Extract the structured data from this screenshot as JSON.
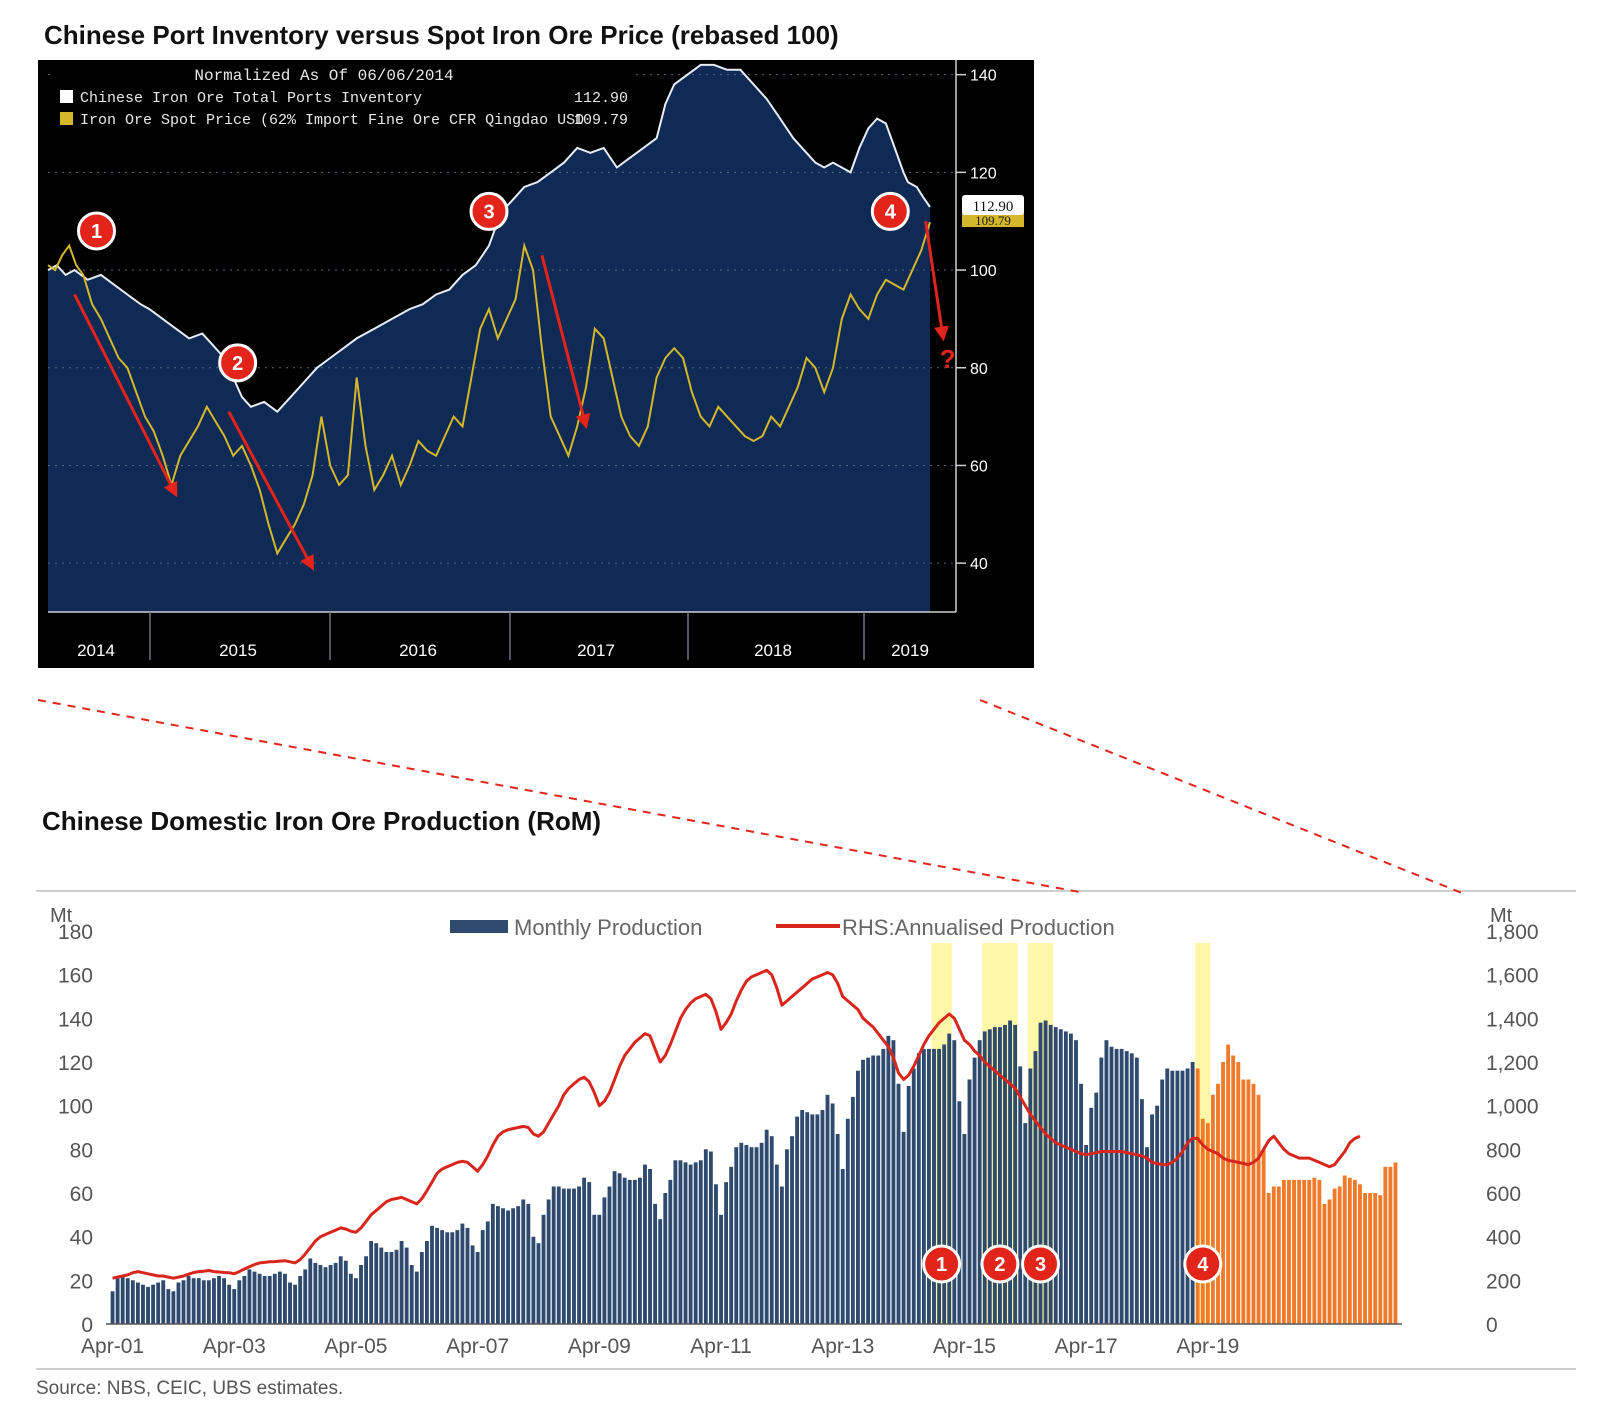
{
  "chart_data": [
    {
      "type": "area",
      "title": "Chinese Port Inventory versus Spot Iron Ore Price (rebased 100)",
      "legend": {
        "header": "Normalized As Of 06/06/2014",
        "placement": "top-left",
        "items": [
          {
            "label": "Chinese Iron Ore Total Ports Inventory",
            "value": "112.90",
            "color": "#ffffff"
          },
          {
            "label": "Iron Ore Spot Price (62% Import Fine Ore CFR Qingdao USD",
            "value": "109.79",
            "color": "#d4b72a"
          }
        ]
      },
      "x_tick_labels": [
        "2014",
        "2015",
        "2016",
        "2017",
        "2018",
        "2019"
      ],
      "y_tick_labels": [
        "140",
        "120",
        "100",
        "80",
        "60",
        "40"
      ],
      "ylim": [
        30,
        143
      ],
      "last_value_labels": [
        "112.90",
        "109.79"
      ],
      "series": [
        {
          "name": "Chinese Iron Ore Total Ports Inventory",
          "color": "#e8ecf5",
          "fill": "#0f2a55",
          "t": [
            0,
            0.01,
            0.02,
            0.03,
            0.045,
            0.06,
            0.075,
            0.09,
            0.105,
            0.115,
            0.13,
            0.145,
            0.16,
            0.175,
            0.185,
            0.2,
            0.21,
            0.22,
            0.23,
            0.245,
            0.26,
            0.275,
            0.29,
            0.305,
            0.32,
            0.335,
            0.35,
            0.37,
            0.39,
            0.41,
            0.425,
            0.44,
            0.455,
            0.47,
            0.485,
            0.5,
            0.51,
            0.52,
            0.53,
            0.54,
            0.555,
            0.57,
            0.585,
            0.6,
            0.615,
            0.63,
            0.645,
            0.66,
            0.675,
            0.69,
            0.7,
            0.71,
            0.725,
            0.74,
            0.755,
            0.77,
            0.785,
            0.8,
            0.815,
            0.83,
            0.845,
            0.86,
            0.87,
            0.88,
            0.89,
            0.9,
            0.91,
            0.92,
            0.93,
            0.94,
            0.95,
            0.96,
            0.97,
            0.975,
            0.985,
            0.992,
            1.0
          ],
          "values": [
            100,
            101,
            99,
            100,
            98,
            99,
            97,
            95,
            93,
            92,
            90,
            88,
            86,
            87,
            85,
            82,
            78,
            74,
            72,
            73,
            71,
            74,
            77,
            80,
            82,
            84,
            86,
            88,
            90,
            92,
            93,
            95,
            96,
            99,
            101,
            105,
            110,
            113,
            115,
            117,
            118,
            120,
            122,
            125,
            124,
            125,
            121,
            123,
            125,
            127,
            134,
            138,
            140,
            142,
            142,
            141,
            141,
            138,
            135,
            131,
            127,
            124,
            122,
            121,
            122,
            121,
            120,
            125,
            129,
            131,
            130,
            125,
            120,
            118,
            117,
            115,
            112.9
          ]
        },
        {
          "name": "Iron Ore Spot Price (62% Import Fine Ore CFR Qingdao USD",
          "color": "#d4b72a",
          "t": [
            0,
            0.008,
            0.016,
            0.024,
            0.032,
            0.04,
            0.05,
            0.06,
            0.07,
            0.08,
            0.09,
            0.1,
            0.11,
            0.12,
            0.13,
            0.14,
            0.15,
            0.16,
            0.17,
            0.18,
            0.19,
            0.2,
            0.21,
            0.22,
            0.23,
            0.24,
            0.25,
            0.26,
            0.27,
            0.28,
            0.29,
            0.3,
            0.31,
            0.32,
            0.33,
            0.34,
            0.35,
            0.36,
            0.37,
            0.38,
            0.39,
            0.4,
            0.41,
            0.42,
            0.43,
            0.44,
            0.45,
            0.46,
            0.47,
            0.48,
            0.49,
            0.5,
            0.51,
            0.52,
            0.53,
            0.54,
            0.55,
            0.56,
            0.57,
            0.58,
            0.59,
            0.6,
            0.61,
            0.62,
            0.63,
            0.64,
            0.65,
            0.66,
            0.67,
            0.68,
            0.69,
            0.7,
            0.71,
            0.72,
            0.73,
            0.74,
            0.75,
            0.76,
            0.77,
            0.78,
            0.79,
            0.8,
            0.81,
            0.82,
            0.83,
            0.84,
            0.85,
            0.86,
            0.87,
            0.88,
            0.89,
            0.9,
            0.91,
            0.92,
            0.93,
            0.94,
            0.95,
            0.96,
            0.97,
            0.98,
            0.99,
            1.0
          ],
          "values": [
            101,
            100,
            103,
            105,
            101,
            99,
            93,
            90,
            86,
            82,
            80,
            75,
            70,
            67,
            62,
            56,
            62,
            65,
            68,
            72,
            69,
            66,
            62,
            64,
            60,
            55,
            48,
            42,
            45,
            48,
            52,
            58,
            70,
            60,
            56,
            58,
            78,
            64,
            55,
            58,
            62,
            56,
            60,
            65,
            63,
            62,
            66,
            70,
            68,
            78,
            88,
            92,
            86,
            90,
            94,
            105,
            100,
            84,
            70,
            66,
            62,
            68,
            76,
            88,
            86,
            78,
            70,
            66,
            64,
            68,
            78,
            82,
            84,
            82,
            75,
            70,
            68,
            72,
            70,
            68,
            66,
            65,
            66,
            70,
            68,
            72,
            76,
            82,
            80,
            75,
            80,
            90,
            95,
            92,
            90,
            95,
            98,
            97,
            96,
            100,
            104,
            109.79
          ]
        }
      ],
      "annotations": [
        {
          "label": "1",
          "t": 0.055,
          "y": 108
        },
        {
          "label": "2",
          "t": 0.215,
          "y": 81
        },
        {
          "label": "3",
          "t": 0.5,
          "y": 112
        },
        {
          "label": "4",
          "t": 0.955,
          "y": 112
        },
        {
          "label": "?",
          "t": 1.02,
          "y": 82
        }
      ],
      "arrows": [
        {
          "from_t": 0.03,
          "from_y": 95,
          "to_t": 0.145,
          "to_y": 54
        },
        {
          "from_t": 0.205,
          "from_y": 71,
          "to_t": 0.3,
          "to_y": 39
        },
        {
          "from_t": 0.56,
          "from_y": 103,
          "to_t": 0.61,
          "to_y": 68
        },
        {
          "from_t": 0.995,
          "from_y": 110,
          "to_t": 1.015,
          "to_y": 86
        }
      ]
    },
    {
      "type": "bar",
      "title": "Chinese Domestic Iron Ore Production (RoM)",
      "ylabel_left": "Mt",
      "ylabel_right": "Mt",
      "ylim": [
        0,
        180
      ],
      "ylim_right": [
        0,
        1800
      ],
      "y_tick_labels": [
        "0",
        "20",
        "40",
        "60",
        "80",
        "100",
        "120",
        "140",
        "160",
        "180"
      ],
      "y_tick_labels_right": [
        "0",
        "200",
        "400",
        "600",
        "800",
        "1,000",
        "1,200",
        "1,400",
        "1,600",
        "1,800"
      ],
      "x_tick_labels": [
        "Apr-01",
        "Apr-03",
        "Apr-05",
        "Apr-07",
        "Apr-09",
        "Apr-11",
        "Apr-13",
        "Apr-15",
        "Apr-17",
        "Apr-19"
      ],
      "legend": [
        {
          "label": "Monthly Production",
          "color": "#2e4a6e",
          "placement": "top"
        },
        {
          "label": "RHS:Annualised Production",
          "color": "#d9261c",
          "placement": "top"
        }
      ],
      "x_start": "Apr-01",
      "bar_color": "#2e4a6e",
      "recent_bar_color": "#f07a2a",
      "series": [
        {
          "name": "Monthly Production",
          "monthly_values": [
            15,
            21,
            22,
            21,
            20,
            19,
            18,
            17,
            18,
            19,
            20,
            16,
            15,
            19,
            20,
            22,
            21,
            21,
            20,
            20,
            21,
            22,
            21,
            18,
            16,
            20,
            22,
            25,
            24,
            23,
            22,
            22,
            23,
            24,
            23,
            19,
            18,
            22,
            25,
            30,
            28,
            27,
            26,
            27,
            28,
            31,
            29,
            23,
            21,
            27,
            31,
            38,
            37,
            35,
            33,
            33,
            34,
            38,
            35,
            27,
            24,
            33,
            38,
            45,
            44,
            43,
            42,
            42,
            43,
            46,
            44,
            36,
            33,
            43,
            47,
            55,
            54,
            53,
            52,
            53,
            54,
            57,
            55,
            40,
            37,
            50,
            57,
            63,
            63,
            62,
            62,
            62,
            63,
            67,
            65,
            50,
            50,
            58,
            63,
            70,
            69,
            67,
            66,
            66,
            67,
            73,
            71,
            55,
            48,
            60,
            66,
            75,
            75,
            74,
            73,
            74,
            75,
            80,
            79,
            64,
            50,
            65,
            72,
            81,
            83,
            82,
            81,
            81,
            83,
            89,
            86,
            73,
            63,
            80,
            86,
            95,
            98,
            97,
            96,
            96,
            98,
            105,
            101,
            87,
            71,
            94,
            104,
            116,
            121,
            122,
            123,
            123,
            126,
            132,
            130,
            110,
            88,
            109,
            117,
            124,
            126,
            126,
            126,
            126,
            128,
            133,
            130,
            102,
            87,
            112,
            122,
            130,
            134,
            135,
            136,
            136,
            137,
            139,
            137,
            118,
            92,
            117,
            125,
            138,
            139,
            137,
            136,
            135,
            134,
            133,
            130,
            110,
            82,
            99,
            106,
            122,
            130,
            127,
            126,
            126,
            125,
            124,
            122,
            103,
            81,
            96,
            100,
            112,
            117,
            116,
            116,
            116,
            117,
            120,
            117,
            94,
            92,
            105,
            110,
            120,
            128,
            123,
            120,
            112,
            112,
            110,
            105,
            80,
            60,
            63,
            63,
            66,
            66,
            66,
            66,
            66,
            66,
            67,
            66,
            55,
            57,
            62,
            63,
            68,
            67,
            66,
            64,
            60,
            60,
            60,
            59,
            72,
            72,
            74
          ]
        },
        {
          "name": "RHS:Annualised Production",
          "color": "#d9261c",
          "monthly_values": [
            210,
            215,
            220,
            225,
            235,
            240,
            235,
            230,
            225,
            220,
            220,
            215,
            210,
            215,
            220,
            228,
            236,
            240,
            242,
            245,
            240,
            238,
            236,
            235,
            230,
            240,
            252,
            262,
            272,
            280,
            282,
            285,
            286,
            288,
            290,
            285,
            280,
            295,
            320,
            350,
            380,
            400,
            410,
            420,
            430,
            440,
            435,
            425,
            420,
            440,
            470,
            500,
            520,
            540,
            560,
            570,
            575,
            580,
            570,
            560,
            550,
            575,
            610,
            650,
            690,
            710,
            720,
            730,
            740,
            745,
            740,
            720,
            700,
            730,
            770,
            820,
            860,
            880,
            890,
            895,
            900,
            905,
            900,
            870,
            860,
            880,
            920,
            960,
            1000,
            1050,
            1080,
            1100,
            1120,
            1130,
            1110,
            1060,
            1000,
            1020,
            1060,
            1120,
            1180,
            1230,
            1260,
            1290,
            1310,
            1330,
            1320,
            1260,
            1200,
            1230,
            1280,
            1340,
            1400,
            1440,
            1470,
            1490,
            1500,
            1510,
            1490,
            1430,
            1350,
            1380,
            1420,
            1480,
            1530,
            1570,
            1590,
            1600,
            1610,
            1620,
            1600,
            1540,
            1460,
            1480,
            1500,
            1520,
            1540,
            1560,
            1580,
            1590,
            1600,
            1610,
            1600,
            1560,
            1500,
            1480,
            1460,
            1440,
            1400,
            1380,
            1360,
            1330,
            1300,
            1270,
            1220,
            1150,
            1120,
            1140,
            1180,
            1230,
            1280,
            1320,
            1350,
            1380,
            1400,
            1420,
            1400,
            1350,
            1300,
            1280,
            1250,
            1230,
            1200,
            1180,
            1160,
            1140,
            1120,
            1100,
            1080,
            1040,
            1000,
            960,
            930,
            900,
            870,
            850,
            830,
            820,
            810,
            800,
            790,
            780,
            775,
            780,
            785,
            790,
            790,
            790,
            790,
            790,
            785,
            780,
            775,
            770,
            760,
            740,
            735,
            730,
            730,
            740,
            760,
            790,
            830,
            850,
            850,
            820,
            800,
            790,
            780,
            760,
            750,
            745,
            740,
            735,
            730,
            740,
            760,
            800,
            840,
            860,
            830,
            800,
            780,
            770,
            760,
            760,
            760,
            750,
            740,
            730,
            720,
            730,
            760,
            790,
            830,
            850,
            860
          ]
        }
      ],
      "highlight_bands": [
        {
          "label": "1",
          "from": "Oct-14",
          "to": "Jan-15",
          "color": "#fff7a8"
        },
        {
          "label": "2",
          "from": "Aug-15",
          "to": "Feb-16",
          "color": "#fff7a8"
        },
        {
          "label": "3",
          "from": "May-16",
          "to": "Sep-16",
          "color": "#fff7a8"
        },
        {
          "label": "4",
          "from": "Feb-19",
          "to": "Apr-19",
          "color": "#fff7a8"
        }
      ]
    }
  ],
  "source_text": "Source:  NBS, CEIC, UBS estimates."
}
